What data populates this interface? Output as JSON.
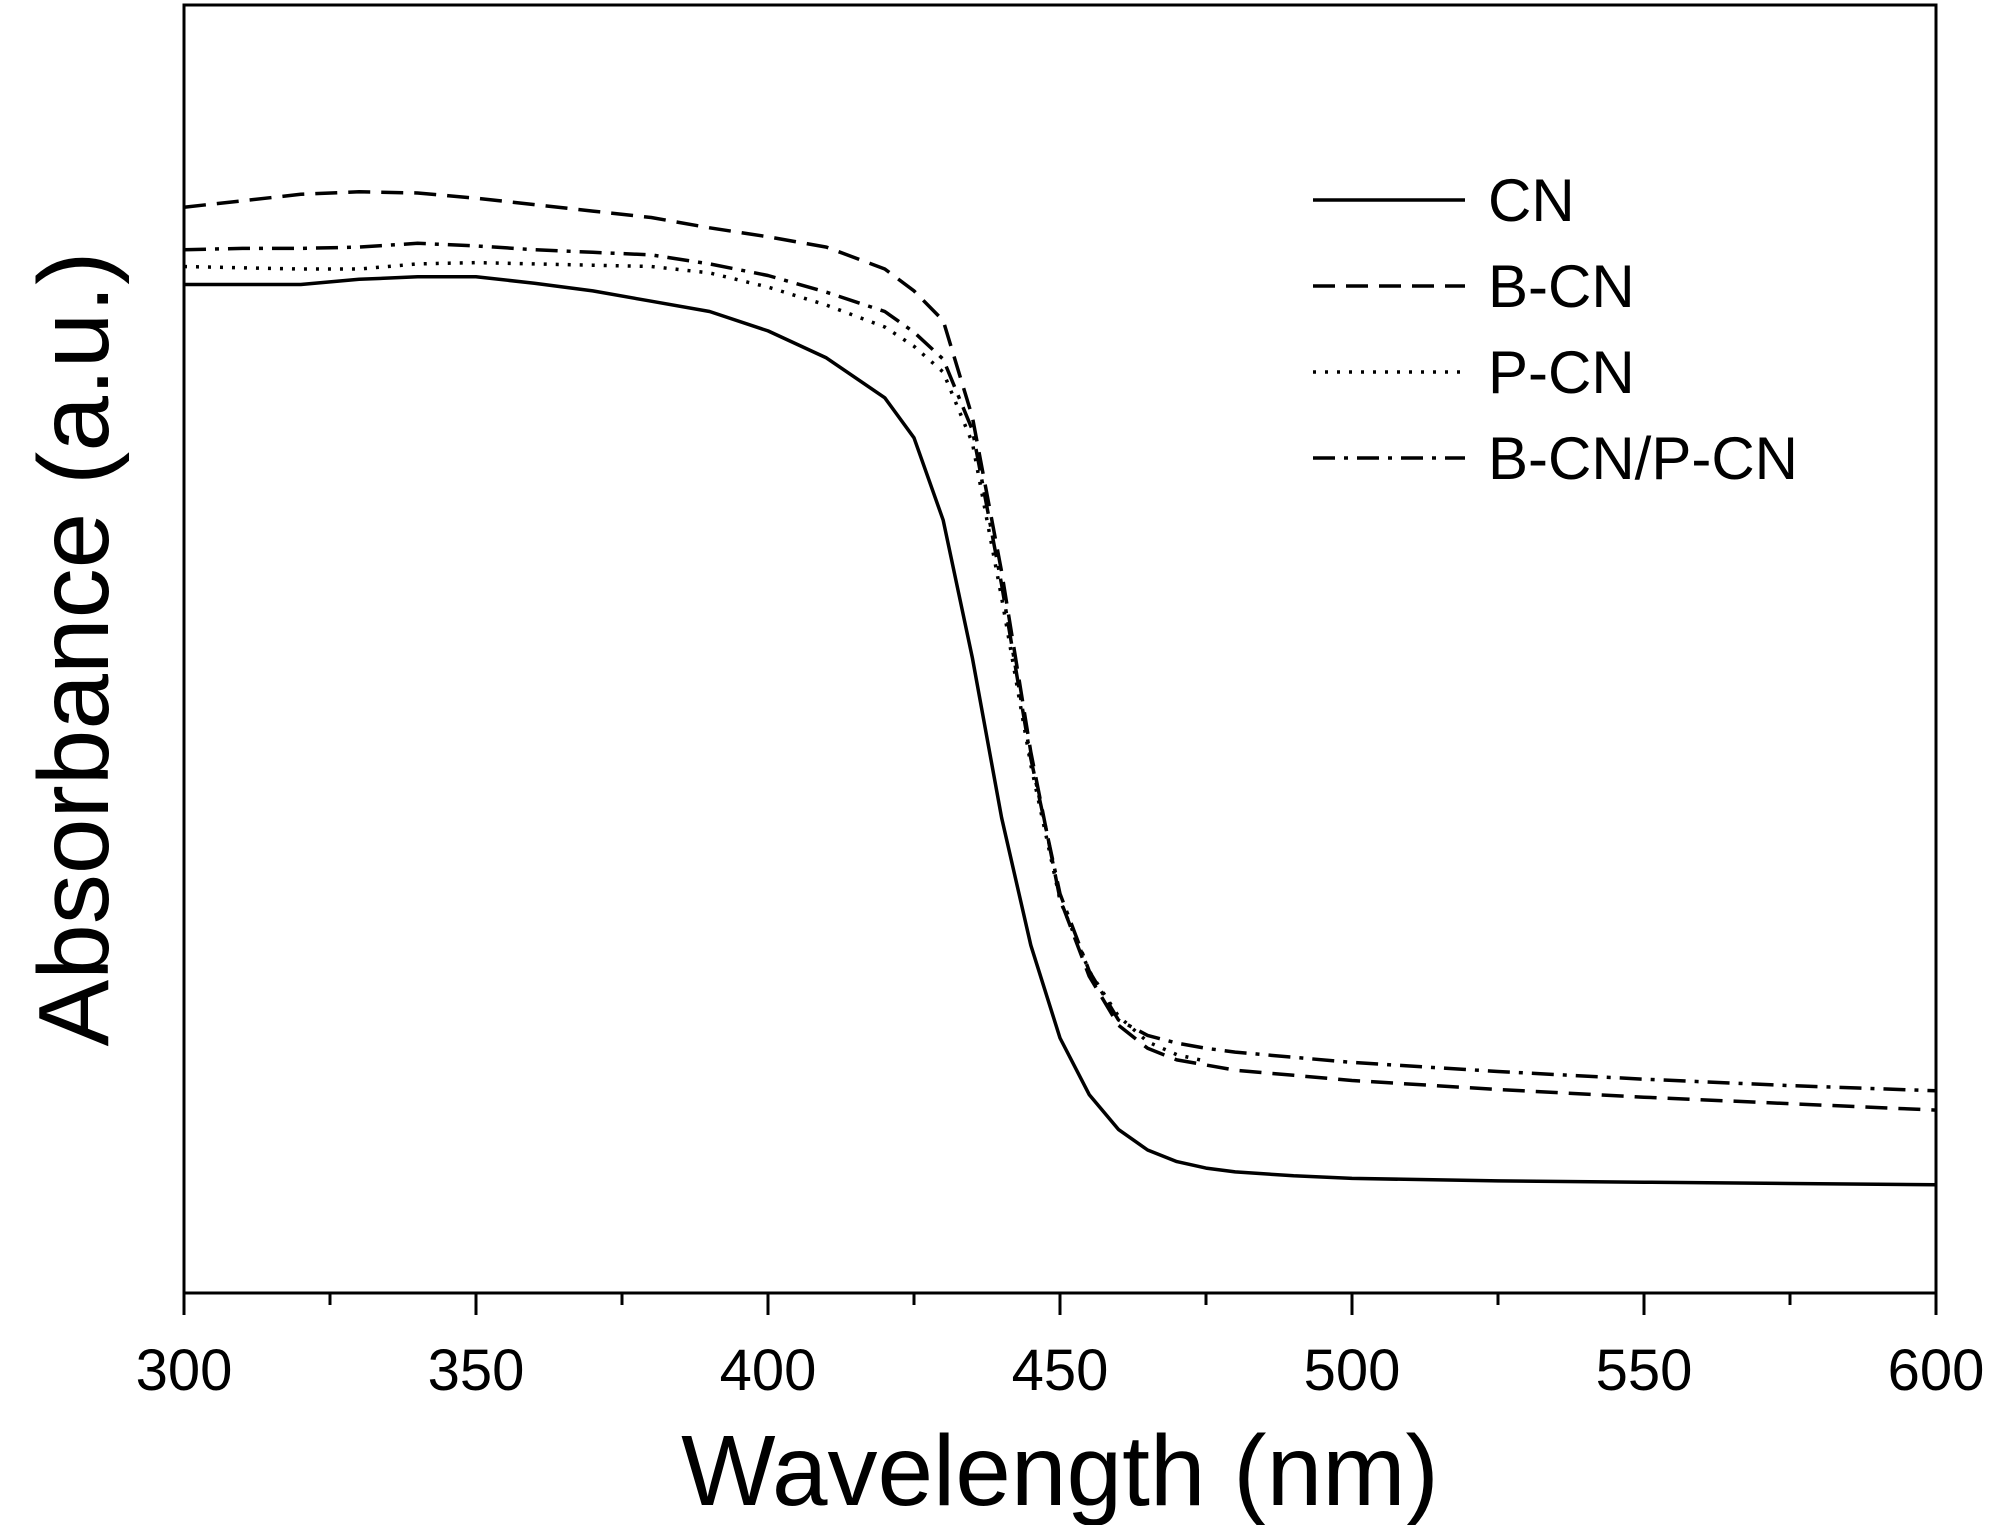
{
  "chart_data": {
    "type": "line",
    "title": "",
    "xlabel": "Wavelength (nm)",
    "ylabel": "Absorbance (a.u.)",
    "xlim": [
      300,
      600
    ],
    "ylim": [
      0,
      1
    ],
    "xticks": [
      300,
      350,
      400,
      450,
      500,
      550,
      600
    ],
    "x_minor_step": 25,
    "y_tick_labels": false,
    "grid": false,
    "legend_position": "top-right",
    "series": [
      {
        "name": "CN",
        "style": "solid",
        "x": [
          300,
          310,
          320,
          330,
          340,
          350,
          360,
          370,
          380,
          390,
          400,
          410,
          420,
          425,
          430,
          435,
          440,
          445,
          450,
          455,
          460,
          465,
          470,
          475,
          480,
          490,
          500,
          525,
          550,
          575,
          600
        ],
        "y": [
          0.783,
          0.783,
          0.783,
          0.787,
          0.789,
          0.789,
          0.784,
          0.778,
          0.77,
          0.762,
          0.747,
          0.726,
          0.695,
          0.664,
          0.6,
          0.493,
          0.369,
          0.27,
          0.198,
          0.154,
          0.127,
          0.111,
          0.102,
          0.097,
          0.094,
          0.091,
          0.089,
          0.087,
          0.086,
          0.085,
          0.084
        ]
      },
      {
        "name": "B-CN",
        "style": "dashed",
        "x": [
          300,
          310,
          320,
          330,
          340,
          350,
          360,
          370,
          380,
          390,
          400,
          410,
          420,
          425,
          430,
          435,
          440,
          445,
          450,
          455,
          460,
          465,
          470,
          475,
          480,
          490,
          500,
          525,
          550,
          575,
          600
        ],
        "y": [
          0.843,
          0.848,
          0.853,
          0.855,
          0.854,
          0.85,
          0.845,
          0.84,
          0.835,
          0.827,
          0.82,
          0.812,
          0.795,
          0.778,
          0.755,
          0.68,
          0.56,
          0.42,
          0.306,
          0.246,
          0.208,
          0.19,
          0.181,
          0.177,
          0.173,
          0.169,
          0.165,
          0.158,
          0.152,
          0.147,
          0.142
        ]
      },
      {
        "name": "P-CN",
        "style": "dotted",
        "x": [
          300,
          310,
          320,
          330,
          340,
          350,
          360,
          370,
          380,
          390,
          400,
          410,
          420,
          425,
          430,
          435,
          440,
          445,
          450,
          455,
          460,
          465,
          470,
          475
        ],
        "y": [
          0.797,
          0.796,
          0.795,
          0.795,
          0.799,
          0.8,
          0.799,
          0.798,
          0.797,
          0.792,
          0.781,
          0.767,
          0.75,
          0.735,
          0.715,
          0.66,
          0.54,
          0.41,
          0.305,
          0.25,
          0.215,
          0.195,
          0.185,
          0.18
        ]
      },
      {
        "name": "B-CN/P-CN",
        "style": "dashdot",
        "x": [
          300,
          310,
          320,
          330,
          340,
          350,
          360,
          370,
          380,
          390,
          400,
          410,
          420,
          425,
          430,
          435,
          440,
          445,
          450,
          455,
          460,
          465,
          470,
          475,
          480,
          490,
          500,
          525,
          550,
          575,
          600
        ],
        "y": [
          0.81,
          0.811,
          0.811,
          0.812,
          0.815,
          0.813,
          0.81,
          0.808,
          0.806,
          0.799,
          0.79,
          0.777,
          0.762,
          0.746,
          0.725,
          0.67,
          0.55,
          0.415,
          0.31,
          0.25,
          0.212,
          0.2,
          0.194,
          0.19,
          0.187,
          0.183,
          0.179,
          0.172,
          0.166,
          0.161,
          0.157
        ]
      }
    ]
  }
}
